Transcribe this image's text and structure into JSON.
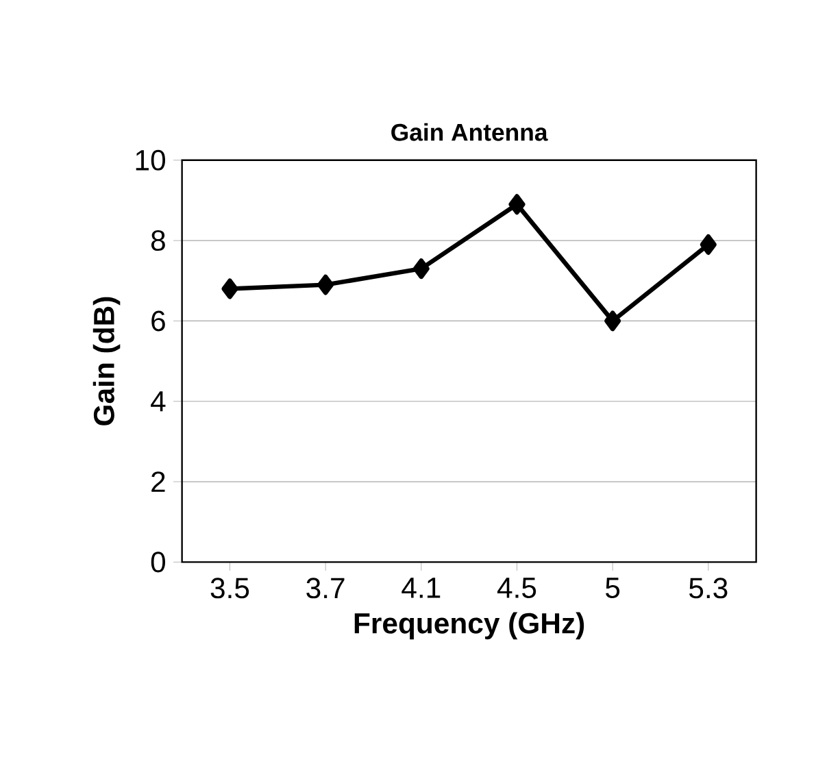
{
  "chart_data": {
    "type": "line",
    "title": "Gain Antenna",
    "xlabel": "Frequency (GHz)",
    "ylabel": "Gain (dB)",
    "categories": [
      "3.5",
      "3.7",
      "4.1",
      "4.5",
      "5",
      "5.3"
    ],
    "series": [
      {
        "color": "#000000",
        "values": [
          6.8,
          6.9,
          7.3,
          8.9,
          6.0,
          7.9
        ]
      }
    ],
    "ylim": [
      0,
      10
    ],
    "yticks": [
      0,
      2,
      4,
      6,
      8,
      10
    ],
    "grid": "y",
    "marker": "diamond",
    "line_style": "solid"
  }
}
